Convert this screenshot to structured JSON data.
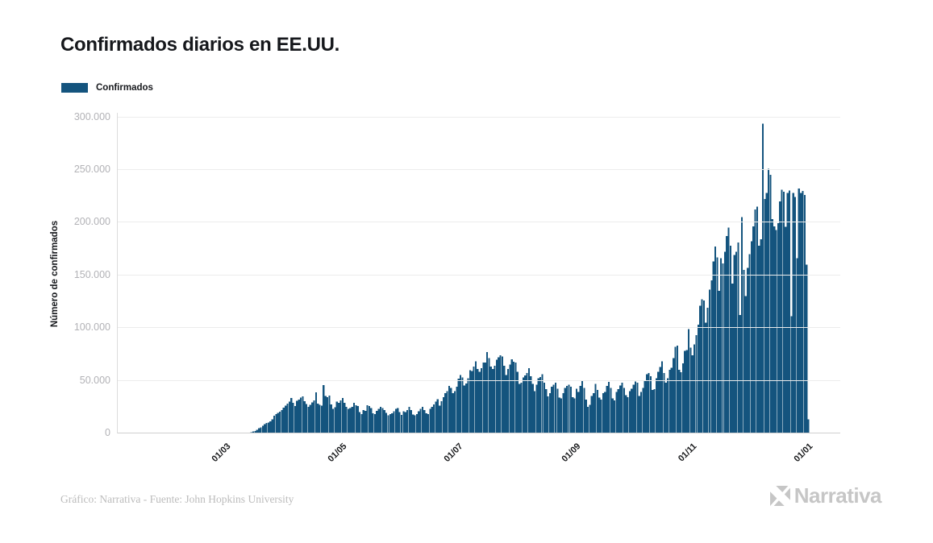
{
  "header": {
    "title": "Confirmados diarios en EE.UU."
  },
  "legend": {
    "label": "Confirmados",
    "swatch_color": "#14547E"
  },
  "colors": {
    "bar": "#14547E",
    "grid": "#ececec",
    "axis": "#cfcfcf",
    "y_tick_text": "#b2b2b6",
    "x_tick_text": "#17181a",
    "title_text": "#16181c",
    "footer_text": "#bcbcbc",
    "logo": "#c6c6c6"
  },
  "footer": {
    "credit": "Gráfico: Narrativa - Fuente: John Hopkins University",
    "brand": "Narrativa"
  },
  "chart_data": {
    "type": "bar",
    "title": "Confirmados diarios en EE.UU.",
    "series_name": "Confirmados",
    "xlabel": "",
    "ylabel": "Número de confirmados",
    "ylim": [
      0,
      300000
    ],
    "ytick_interval": 50000,
    "grid": true,
    "legend_position": "top-left",
    "yticks": [
      {
        "value": 0,
        "label": "0"
      },
      {
        "value": 50000,
        "label": "50.000"
      },
      {
        "value": 100000,
        "label": "100.000"
      },
      {
        "value": 150000,
        "label": "150.000"
      },
      {
        "value": 200000,
        "label": "200.000"
      },
      {
        "value": 250000,
        "label": "250.000"
      },
      {
        "value": 300000,
        "label": "300.000"
      }
    ],
    "xticks": [
      {
        "label": "01/03",
        "day_index": 39
      },
      {
        "label": "01/05",
        "day_index": 100
      },
      {
        "label": "01/07",
        "day_index": 161
      },
      {
        "label": "01/09",
        "day_index": 223
      },
      {
        "label": "01/11",
        "day_index": 284
      },
      {
        "label": "01/01",
        "day_index": 345
      }
    ],
    "values": [
      1,
      0,
      1,
      0,
      3,
      0,
      0,
      0,
      2,
      3,
      1,
      0,
      2,
      0,
      3,
      0,
      0,
      0,
      0,
      2,
      1,
      0,
      1,
      2,
      0,
      0,
      0,
      1,
      2,
      1,
      5,
      8,
      6,
      10,
      14,
      16,
      9,
      6,
      22,
      30,
      25,
      45,
      70,
      95,
      120,
      180,
      260,
      350,
      450,
      560,
      700,
      950,
      1300,
      1800,
      2300,
      3400,
      4800,
      5900,
      7400,
      8800,
      9800,
      10500,
      11500,
      13500,
      17000,
      18500,
      19500,
      20500,
      22000,
      24500,
      26500,
      28200,
      30100,
      33800,
      29000,
      26100,
      30800,
      32200,
      34100,
      35200,
      30500,
      27800,
      25300,
      27100,
      29300,
      31200,
      39000,
      28400,
      27000,
      26200,
      46000,
      35400,
      34300,
      36100,
      27400,
      23200,
      24800,
      30200,
      29100,
      31400,
      33800,
      29200,
      25400,
      23300,
      24100,
      25300,
      28900,
      26800,
      25900,
      20300,
      18200,
      22100,
      21400,
      26900,
      26100,
      24000,
      19100,
      18300,
      21300,
      23200,
      25100,
      24200,
      22000,
      19400,
      17200,
      18300,
      19200,
      21100,
      23300,
      24100,
      20100,
      17400,
      21100,
      20400,
      22200,
      25100,
      22300,
      18100,
      17300,
      18400,
      21200,
      23300,
      25400,
      22100,
      19300,
      18400,
      23200,
      25300,
      27400,
      30200,
      32400,
      26300,
      30400,
      34500,
      38300,
      40100,
      45200,
      43100,
      38400,
      40300,
      44500,
      52100,
      55300,
      53200,
      45400,
      47300,
      52300,
      60200,
      59100,
      63400,
      68300,
      61200,
      58300,
      62100,
      67400,
      67200,
      77200,
      71300,
      63400,
      61200,
      64300,
      70100,
      72300,
      74200,
      73100,
      64200,
      55300,
      61200,
      65400,
      70300,
      68200,
      67100,
      58300,
      47200,
      48100,
      53300,
      55200,
      57400,
      62100,
      54300,
      47100,
      40200,
      46300,
      52200,
      53400,
      56100,
      48200,
      42100,
      35300,
      38200,
      44300,
      46200,
      48100,
      42300,
      34200,
      33400,
      38300,
      43200,
      45100,
      46300,
      44200,
      34300,
      33200,
      42300,
      39200,
      45100,
      50300,
      43200,
      32100,
      25300,
      27200,
      35400,
      38300,
      47200,
      41300,
      34200,
      32300,
      38400,
      39200,
      45300,
      49100,
      43300,
      33200,
      31400,
      39300,
      42200,
      45400,
      48200,
      43300,
      36200,
      34300,
      40200,
      42400,
      46200,
      49300,
      48200,
      35400,
      39300,
      43200,
      50400,
      56300,
      57200,
      54100,
      41300,
      42200,
      52300,
      58400,
      63200,
      68300,
      57400,
      48300,
      52400,
      60300,
      62400,
      71300,
      82200,
      83400,
      60300,
      58200,
      66400,
      78300,
      79200,
      99100,
      81300,
      74200,
      84300,
      93400,
      103200,
      121300,
      127400,
      126200,
      105300,
      119400,
      136300,
      145200,
      163400,
      177300,
      167200,
      135300,
      166400,
      161300,
      172400,
      187300,
      195400,
      178300,
      142200,
      169300,
      172400,
      181300,
      112200,
      205400,
      155300,
      130400,
      157300,
      170300,
      182400,
      196300,
      212400,
      215300,
      178200,
      184300,
      294000,
      222300,
      228400,
      251200,
      245300,
      203400,
      196300,
      193200,
      199400,
      220300,
      231400,
      229300,
      196200,
      228300,
      230400,
      111300,
      228200,
      224300,
      166400,
      232300,
      228400,
      230300,
      226200,
      160300,
      13500
    ]
  }
}
